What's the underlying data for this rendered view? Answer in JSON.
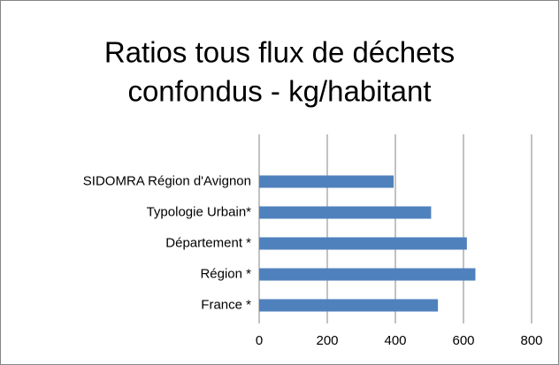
{
  "chart_data": {
    "type": "barh",
    "title": [
      "Ratios tous flux de déchets",
      "confondus - kg/habitant"
    ],
    "categories": [
      "SIDOMRA Région d'Avignon",
      "Typologie Urbain*",
      "Département *",
      "Région *",
      "France *"
    ],
    "values": [
      395,
      505,
      610,
      635,
      525
    ],
    "color": "#4f81bd",
    "xlim": [
      0,
      800
    ],
    "xticks": [
      0,
      200,
      400,
      600,
      800
    ],
    "grid": true
  }
}
